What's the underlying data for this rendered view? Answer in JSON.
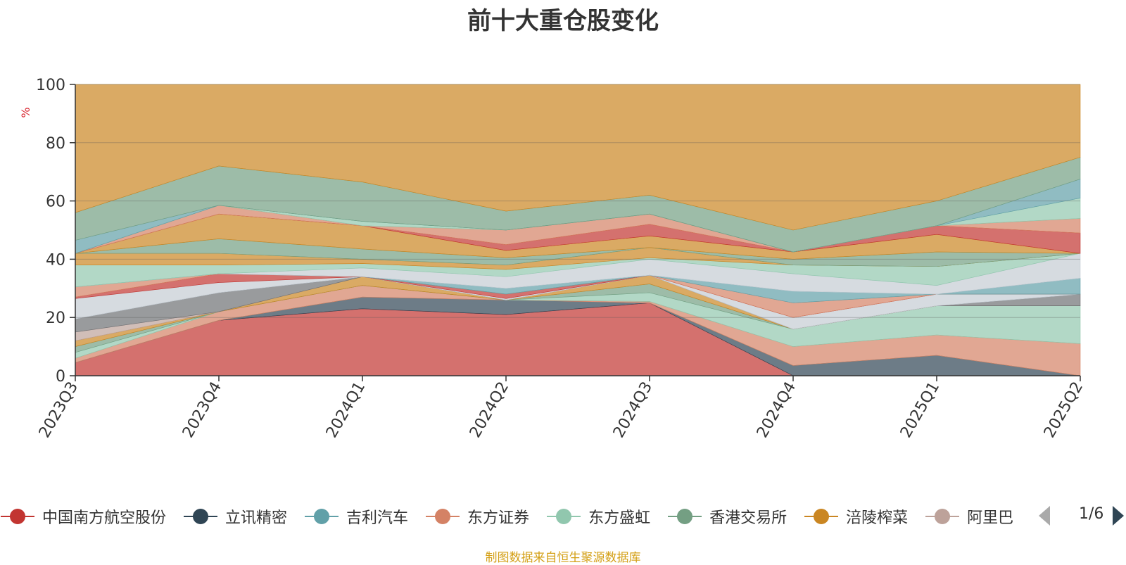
{
  "chart_data": {
    "type": "area",
    "title": "前十大重仓股变化",
    "ylabel": "%",
    "ylim": [
      0,
      100
    ],
    "yticks": [
      0,
      20,
      40,
      60,
      80,
      100
    ],
    "categories": [
      "2023Q3",
      "2023Q4",
      "2024Q1",
      "2024Q2",
      "2024Q3",
      "2024Q4",
      "2025Q1",
      "2025Q2"
    ],
    "stack_boundaries": [
      [
        4.5,
        19,
        23,
        21,
        25,
        0,
        0,
        0
      ],
      [
        4.5,
        19,
        27,
        26,
        25,
        3.5,
        7,
        0
      ],
      [
        4.5,
        19,
        27,
        26,
        25,
        3.5,
        7,
        0
      ],
      [
        6,
        22,
        31,
        26,
        25.5,
        10,
        14,
        11
      ],
      [
        8,
        22,
        31,
        26,
        28.5,
        16,
        24,
        24
      ],
      [
        10,
        22,
        31,
        26,
        31.5,
        16,
        24,
        24
      ],
      [
        12,
        22,
        34,
        26,
        34.5,
        16,
        24,
        24
      ],
      [
        15,
        22,
        34,
        26,
        34.5,
        16,
        24,
        24
      ],
      [
        19.5,
        28.5,
        34,
        26,
        34.5,
        16,
        24,
        28
      ],
      [
        26.5,
        32,
        34,
        26.5,
        34.5,
        20,
        28,
        28
      ],
      [
        27,
        35,
        34,
        28,
        34.5,
        20,
        28,
        28
      ],
      [
        30.5,
        35,
        34,
        28,
        34.5,
        25,
        28,
        28
      ],
      [
        30.5,
        35,
        34,
        30,
        34.5,
        29,
        28,
        33.5
      ],
      [
        30.5,
        35,
        37,
        34,
        40,
        35,
        31,
        42
      ],
      [
        38,
        38,
        38.5,
        36.5,
        40.5,
        38,
        37.5,
        42
      ],
      [
        42,
        42,
        40,
        38,
        44,
        38,
        37.5,
        42
      ],
      [
        42,
        47,
        43.5,
        40.5,
        44,
        40,
        42.5,
        42
      ],
      [
        42,
        55.5,
        51.5,
        43,
        48,
        42.5,
        48.5,
        42
      ],
      [
        42,
        55.5,
        51.5,
        45,
        52,
        42.5,
        51.5,
        49
      ],
      [
        42,
        58.5,
        51.5,
        50,
        55.5,
        42.5,
        51.5,
        54
      ],
      [
        42,
        58.5,
        53,
        50,
        55.5,
        42.5,
        51.5,
        61
      ],
      [
        46.5,
        58.5,
        53,
        50,
        55.5,
        42.5,
        51.5,
        67.5
      ],
      [
        56,
        72,
        66.5,
        56.5,
        62,
        50,
        60,
        75
      ],
      [
        100,
        100,
        100,
        100,
        100,
        100,
        100,
        100
      ]
    ],
    "layer_colors": [
      "#c23531",
      "#2f4554",
      "#61a0a8",
      "#d48265",
      "#91c7ae",
      "#749f83",
      "#ca8622",
      "#bda29a",
      "#6e7074",
      "#c4ccd3",
      "#c23531",
      "#d48265",
      "#61a0a8",
      "#c4ccd3",
      "#91c7ae",
      "#ca8622",
      "#749f83",
      "#ca8622",
      "#c23531",
      "#d48265",
      "#91c7ae",
      "#61a0a8",
      "#749f83",
      "#ca8622"
    ],
    "series": [
      {
        "name": "中国南方航空股份",
        "color": "#c23531"
      },
      {
        "name": "立讯精密",
        "color": "#2f4554"
      },
      {
        "name": "吉利汽车",
        "color": "#61a0a8"
      },
      {
        "name": "东方证券",
        "color": "#d48265"
      },
      {
        "name": "东方盛虹",
        "color": "#91c7ae"
      },
      {
        "name": "香港交易所",
        "color": "#749f83"
      },
      {
        "name": "涪陵榨菜",
        "color": "#ca8622"
      },
      {
        "name": "阿里巴",
        "color": "#bda29a"
      }
    ],
    "legend_page": "1/6",
    "grid": true,
    "legend": "bottom"
  },
  "footer": {
    "source": "制图数据来自恒生聚源数据库"
  }
}
